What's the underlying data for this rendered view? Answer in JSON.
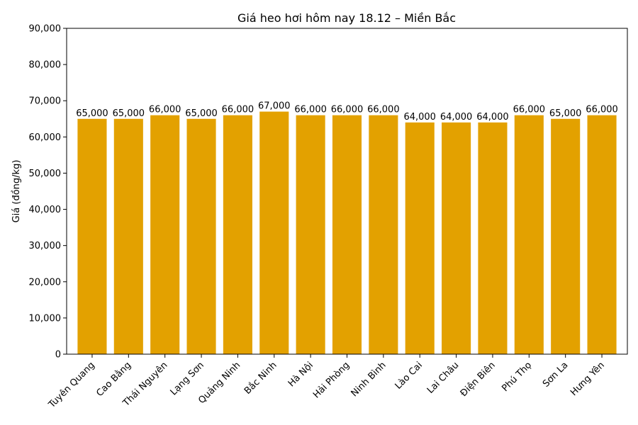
{
  "chart_data": {
    "type": "bar",
    "title": "Giá heo hơi hôm nay 18.12 – Miền Bắc",
    "xlabel": "",
    "ylabel": "Giá (đồng/kg)",
    "ylim": [
      0,
      90000
    ],
    "yticks": [
      0,
      10000,
      20000,
      30000,
      40000,
      50000,
      60000,
      70000,
      80000,
      90000
    ],
    "ytick_labels": [
      "0",
      "10,000",
      "20,000",
      "30,000",
      "40,000",
      "50,000",
      "60,000",
      "70,000",
      "80,000",
      "90,000"
    ],
    "categories": [
      "Tuyên Quang",
      "Cao Bằng",
      "Thái Nguyên",
      "Lạng Sơn",
      "Quảng Ninh",
      "Bắc Ninh",
      "Hà Nội",
      "Hải Phòng",
      "Ninh Bình",
      "Lào Cai",
      "Lai Châu",
      "Điện Biên",
      "Phú Thọ",
      "Sơn La",
      "Hưng Yên"
    ],
    "values": [
      65000,
      65000,
      66000,
      65000,
      66000,
      67000,
      66000,
      66000,
      66000,
      64000,
      64000,
      64000,
      66000,
      65000,
      66000
    ],
    "data_labels": [
      "65,000",
      "65,000",
      "66,000",
      "65,000",
      "66,000",
      "67,000",
      "66,000",
      "66,000",
      "66,000",
      "64,000",
      "64,000",
      "64,000",
      "66,000",
      "65,000",
      "66,000"
    ],
    "bar_color": "#e3a100",
    "grid": false,
    "legend": "none"
  }
}
